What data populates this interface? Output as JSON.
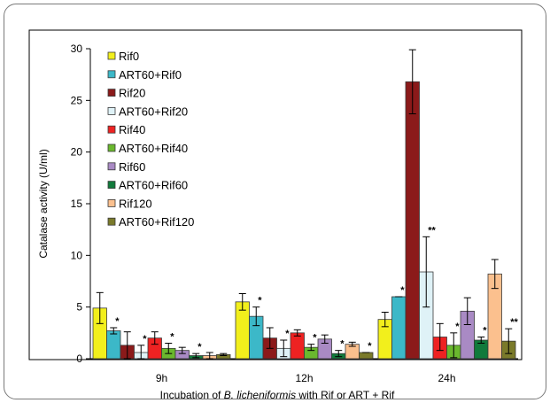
{
  "chart_data": {
    "type": "bar",
    "ylabel": "Catalase activity (U/ml)",
    "xlabel_parts": [
      "Incubation of ",
      "B. licheniformis",
      " with Rif or ART + Rif"
    ],
    "ylim": [
      0,
      30
    ],
    "yticks": [
      0,
      5,
      10,
      15,
      20,
      25,
      30
    ],
    "grid": false,
    "legend_position": "top-left",
    "categories": [
      "9h",
      "12h",
      "24h"
    ],
    "series": [
      {
        "name": "Rif0",
        "color": "#f2ef1c",
        "values": [
          4.9,
          5.5,
          3.8
        ],
        "errors": [
          1.5,
          0.8,
          0.7
        ],
        "sig": [
          "",
          "",
          ""
        ]
      },
      {
        "name": "ART60+Rif0",
        "color": "#3cb8c8",
        "values": [
          2.7,
          4.1,
          6.0
        ],
        "errors": [
          0.3,
          0.9,
          0.0
        ],
        "sig": [
          "*",
          "*",
          "*"
        ]
      },
      {
        "name": "Rif20",
        "color": "#8b1a1a",
        "values": [
          1.3,
          2.0,
          26.8
        ],
        "errors": [
          1.3,
          1.0,
          3.1
        ],
        "sig": [
          "",
          "",
          ""
        ]
      },
      {
        "name": "ART60+Rif20",
        "color": "#dff2f7",
        "values": [
          0.6,
          1.0,
          8.4
        ],
        "errors": [
          0.7,
          0.8,
          3.4
        ],
        "sig": [
          "*",
          "*",
          "**"
        ]
      },
      {
        "name": "Rif40",
        "color": "#ee2222",
        "values": [
          2.0,
          2.5,
          2.1
        ],
        "errors": [
          0.6,
          0.3,
          1.3
        ],
        "sig": [
          "",
          "",
          ""
        ]
      },
      {
        "name": "ART60+Rif40",
        "color": "#6ab82e",
        "values": [
          1.0,
          1.1,
          1.3
        ],
        "errors": [
          0.5,
          0.3,
          1.2
        ],
        "sig": [
          "*",
          "*",
          "*"
        ]
      },
      {
        "name": "Rif60",
        "color": "#a98ac4",
        "values": [
          0.8,
          1.9,
          4.6
        ],
        "errors": [
          0.3,
          0.4,
          1.3
        ],
        "sig": [
          "",
          "",
          ""
        ]
      },
      {
        "name": "ART60+Rif60",
        "color": "#117a3b",
        "values": [
          0.3,
          0.5,
          1.8
        ],
        "errors": [
          0.2,
          0.3,
          0.3
        ],
        "sig": [
          "*",
          "*",
          "*"
        ]
      },
      {
        "name": "Rif120",
        "color": "#fbc08e",
        "values": [
          0.3,
          1.4,
          8.2
        ],
        "errors": [
          0.3,
          0.2,
          1.4
        ],
        "sig": [
          "",
          "",
          ""
        ]
      },
      {
        "name": "ART60+Rif120",
        "color": "#7a7a2a",
        "values": [
          0.4,
          0.6,
          1.7
        ],
        "errors": [
          0.1,
          0.0,
          1.2
        ],
        "sig": [
          "",
          "*",
          "**"
        ]
      }
    ]
  }
}
